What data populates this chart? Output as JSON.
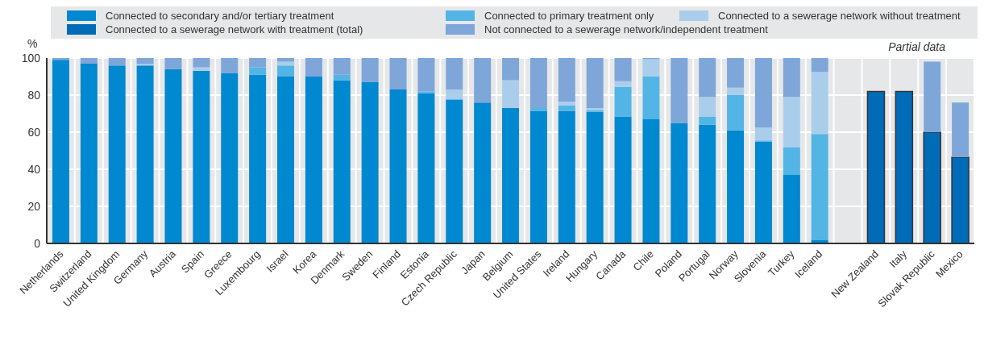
{
  "chart_data": {
    "type": "bar",
    "stacked": true,
    "ylabel": "%",
    "ylim": [
      0,
      100
    ],
    "yticks": [
      0,
      20,
      40,
      60,
      80,
      100
    ],
    "grid": true,
    "legend": "top",
    "annotations": [
      "Partial data"
    ],
    "categories": [
      "Netherlands",
      "Switzerland",
      "United Kingdom",
      "Germany",
      "Austria",
      "Spain",
      "Greece",
      "Luxembourg",
      "Israel",
      "Korea",
      "Denmark",
      "Sweden",
      "Finland",
      "Estonia",
      "Czech Republic",
      "Japan",
      "Belgium",
      "United States",
      "Ireland",
      "Hungary",
      "Canada",
      "Chile",
      "Poland",
      "Portugal",
      "Norway",
      "Slovenia",
      "Turkey",
      "Iceland",
      null,
      "New Zealand",
      "Italy",
      "Slovak Republic",
      "Mexico"
    ],
    "series": [
      {
        "name": "Connected to secondary and/or tertiary treatment",
        "color": "#0088d0",
        "values": [
          99,
          97,
          96,
          96,
          94,
          93,
          92,
          91,
          90,
          90,
          88,
          87,
          83,
          81,
          77.5,
          76,
          73,
          71.5,
          71.5,
          71,
          68.5,
          67,
          65,
          64,
          61,
          55,
          37,
          2,
          null,
          null,
          null,
          null,
          null
        ]
      },
      {
        "name": "Connected to primary treatment only",
        "color": "#52b5e6",
        "values": [
          0,
          0,
          0,
          0,
          0,
          0,
          0,
          4,
          6,
          0,
          3,
          0,
          0,
          1,
          0.5,
          0,
          0,
          1.5,
          3,
          1,
          16,
          23,
          0,
          4.5,
          19,
          0.5,
          15,
          57,
          null,
          null,
          null,
          null,
          null
        ]
      },
      {
        "name": "Connected to a sewerage network without treatment",
        "color": "#abcdec",
        "values": [
          0,
          0,
          0,
          1,
          0,
          2,
          0,
          0,
          2,
          0,
          0,
          0,
          0,
          0,
          5,
          0,
          15,
          0,
          2,
          1,
          3,
          9.5,
          0,
          10.5,
          4,
          7,
          27,
          33.5,
          null,
          null,
          null,
          null,
          null
        ]
      },
      {
        "name": "Connected to a sewerage network with treatment (total)",
        "color": "#006bb6",
        "values": [
          null,
          null,
          null,
          null,
          null,
          null,
          null,
          null,
          null,
          null,
          null,
          null,
          null,
          null,
          null,
          null,
          null,
          null,
          null,
          null,
          null,
          null,
          null,
          null,
          null,
          null,
          null,
          null,
          null,
          82,
          82,
          60,
          46.5
        ]
      },
      {
        "name": "Not connected to a sewerage network/independent treatment",
        "color": "#7ea6d8",
        "values": [
          1,
          3,
          4,
          3,
          6,
          5,
          8,
          5,
          2,
          10,
          9,
          13,
          17,
          18,
          17,
          24,
          12,
          27,
          23.5,
          27,
          12.5,
          0.5,
          35,
          21,
          16,
          37.5,
          21,
          7.5,
          null,
          null,
          null,
          38,
          29.5
        ]
      }
    ]
  }
}
